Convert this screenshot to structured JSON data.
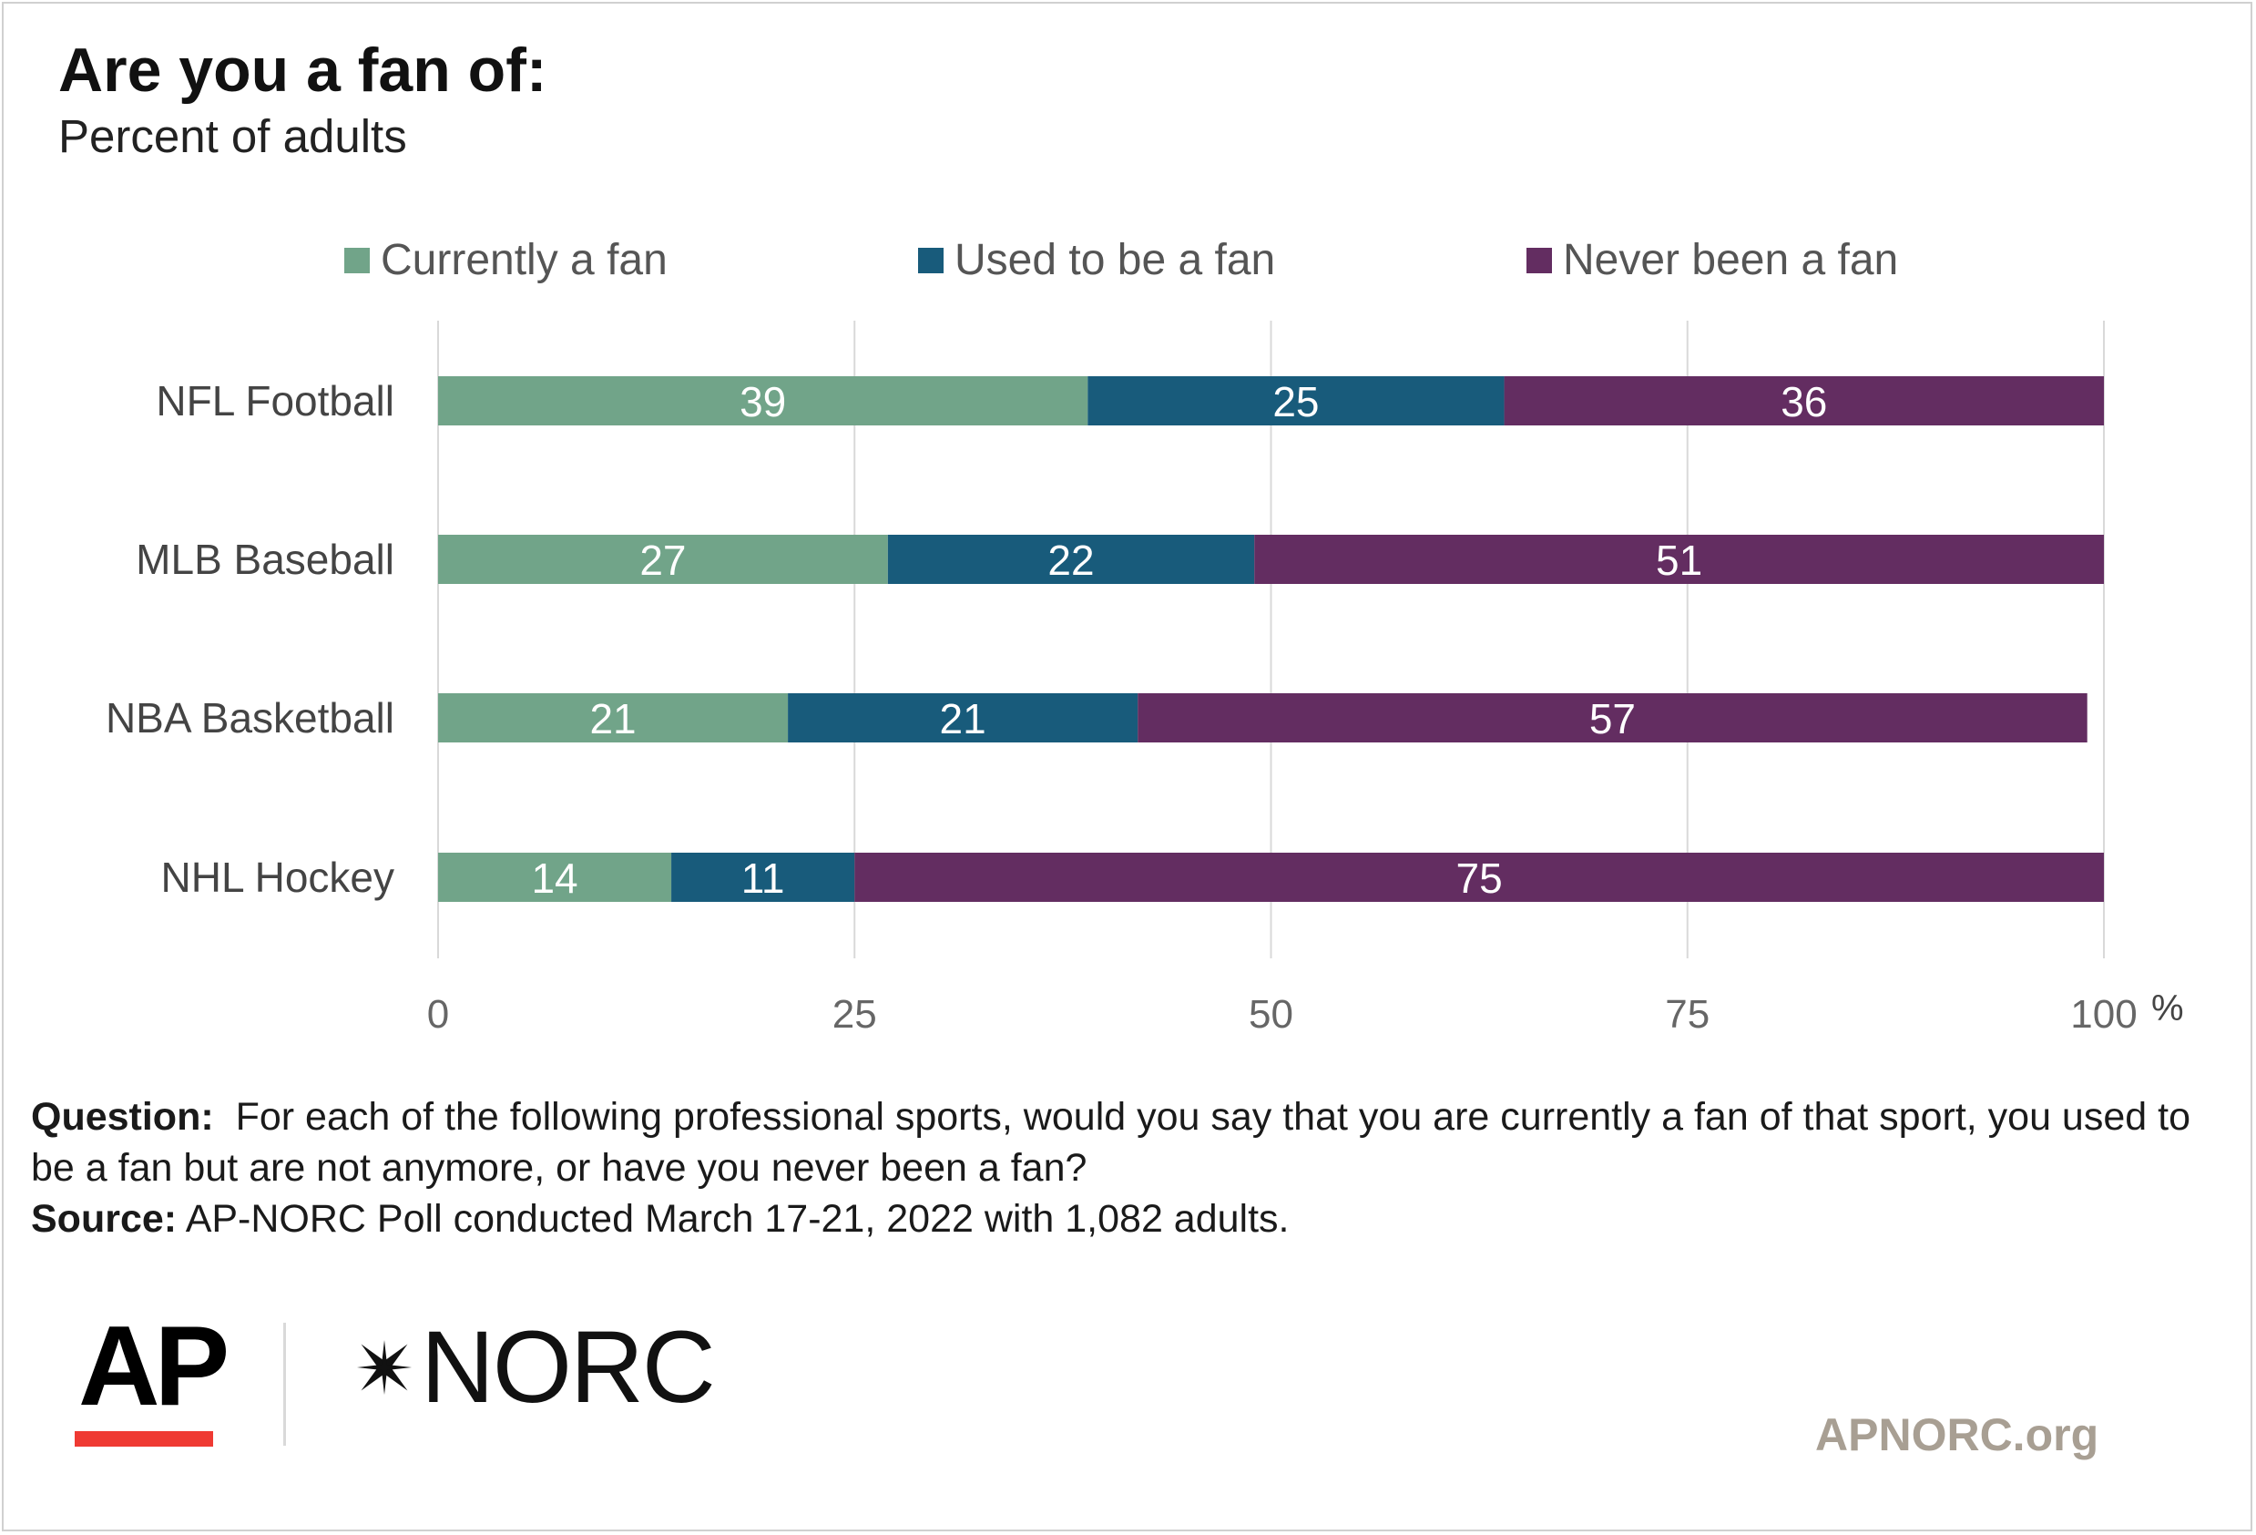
{
  "title": "Are you a fan of:",
  "subtitle": "Percent of adults",
  "legend": [
    {
      "label": "Currently a fan",
      "color": "#71a489"
    },
    {
      "label": "Used to be a fan",
      "color": "#185b7b"
    },
    {
      "label": "Never been a fan",
      "color": "#632d61"
    }
  ],
  "chart_data": {
    "type": "bar",
    "orientation": "horizontal",
    "stacked": true,
    "title": "Are you a fan of:",
    "subtitle": "Percent of adults",
    "categories": [
      "NFL Football",
      "MLB Baseball",
      "NBA Basketball",
      "NHL Hockey"
    ],
    "series": [
      {
        "name": "Currently a fan",
        "color": "#71a489",
        "values": [
          39,
          27,
          21,
          14
        ]
      },
      {
        "name": "Used to be a fan",
        "color": "#185b7b",
        "values": [
          25,
          22,
          21,
          11
        ]
      },
      {
        "name": "Never been a fan",
        "color": "#632d61",
        "values": [
          36,
          51,
          57,
          75
        ]
      }
    ],
    "xlim": [
      0,
      100
    ],
    "xticks": [
      0,
      25,
      50,
      75,
      100
    ],
    "xunit": "%",
    "grid": true,
    "legend_position": "top"
  },
  "notes": {
    "question_label": "Question:",
    "question_text": "For each of the following professional sports, would you say that you are currently a fan of that sport, you used to be a fan but are not anymore, or have you never been a fan?",
    "source_label": "Source:",
    "source_text": "AP-NORC Poll conducted March 17-21, 2022 with 1,082 adults."
  },
  "logos": {
    "ap": "AP",
    "norc": "NORC"
  },
  "site": "APNORC.org"
}
